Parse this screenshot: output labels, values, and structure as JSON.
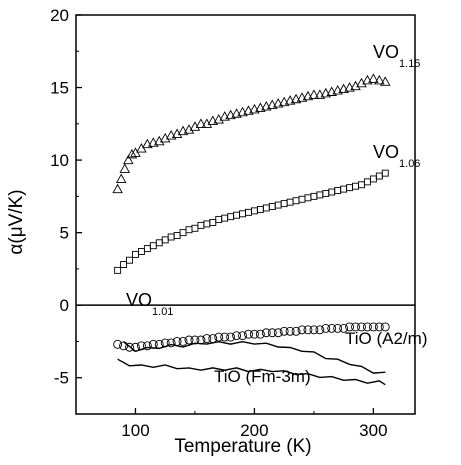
{
  "chart_data": {
    "type": "scatter",
    "xlabel": "Temperature (K)",
    "ylabel": "α(μV/K)",
    "xlim": [
      50,
      335
    ],
    "ylim": [
      -7.5,
      20
    ],
    "xticks": [
      100,
      200,
      300
    ],
    "yticks": [
      -5,
      0,
      5,
      10,
      15,
      20
    ],
    "zero_line": true,
    "grid": false,
    "series": [
      {
        "label_main": "VO",
        "label_sub": "1.15",
        "marker": "triangle",
        "x": [
          85,
          88,
          91,
          94,
          97,
          100,
          105,
          110,
          115,
          120,
          125,
          130,
          135,
          140,
          145,
          150,
          155,
          160,
          165,
          170,
          175,
          180,
          185,
          190,
          195,
          200,
          205,
          210,
          215,
          220,
          225,
          230,
          235,
          240,
          245,
          250,
          255,
          260,
          265,
          270,
          275,
          280,
          285,
          290,
          295,
          300,
          305,
          310
        ],
        "y": [
          8.0,
          8.7,
          9.4,
          10.0,
          10.4,
          10.5,
          10.8,
          11.1,
          11.2,
          11.3,
          11.5,
          11.7,
          11.8,
          12.0,
          12.1,
          12.3,
          12.5,
          12.5,
          12.7,
          12.8,
          13.0,
          13.1,
          13.2,
          13.3,
          13.4,
          13.5,
          13.6,
          13.7,
          13.8,
          13.9,
          14.0,
          14.1,
          14.2,
          14.3,
          14.4,
          14.5,
          14.5,
          14.6,
          14.7,
          14.8,
          14.9,
          15.0,
          15.1,
          15.3,
          15.5,
          15.6,
          15.5,
          15.4
        ]
      },
      {
        "label_main": "VO",
        "label_sub": "1.06",
        "marker": "square",
        "x": [
          85,
          90,
          95,
          100,
          105,
          110,
          115,
          120,
          125,
          130,
          135,
          140,
          145,
          150,
          155,
          160,
          165,
          170,
          175,
          180,
          185,
          190,
          195,
          200,
          205,
          210,
          215,
          220,
          225,
          230,
          235,
          240,
          245,
          250,
          255,
          260,
          265,
          270,
          275,
          280,
          285,
          290,
          295,
          300,
          305,
          310
        ],
        "y": [
          2.4,
          2.8,
          3.1,
          3.5,
          3.7,
          3.9,
          4.1,
          4.3,
          4.5,
          4.7,
          4.8,
          5.0,
          5.2,
          5.3,
          5.5,
          5.6,
          5.7,
          5.9,
          6.0,
          6.1,
          6.2,
          6.3,
          6.4,
          6.5,
          6.6,
          6.7,
          6.8,
          6.9,
          7.0,
          7.1,
          7.2,
          7.3,
          7.4,
          7.5,
          7.6,
          7.7,
          7.8,
          7.9,
          8.0,
          8.1,
          8.2,
          8.3,
          8.5,
          8.7,
          8.9,
          9.1
        ]
      },
      {
        "label_main": "VO",
        "label_sub": "1.01",
        "marker": "circle",
        "x": [
          85,
          90,
          95,
          100,
          105,
          110,
          115,
          120,
          125,
          130,
          135,
          140,
          145,
          150,
          155,
          160,
          165,
          170,
          175,
          180,
          185,
          190,
          195,
          200,
          205,
          210,
          215,
          220,
          225,
          230,
          235,
          240,
          245,
          250,
          255,
          260,
          265,
          270,
          275,
          280,
          285,
          290,
          295,
          300,
          305,
          310
        ],
        "y": [
          -2.7,
          -2.8,
          -2.9,
          -2.9,
          -2.8,
          -2.8,
          -2.7,
          -2.7,
          -2.6,
          -2.6,
          -2.5,
          -2.5,
          -2.4,
          -2.4,
          -2.4,
          -2.3,
          -2.3,
          -2.2,
          -2.2,
          -2.2,
          -2.1,
          -2.1,
          -2.0,
          -2.0,
          -2.0,
          -1.9,
          -1.9,
          -1.9,
          -1.8,
          -1.8,
          -1.8,
          -1.7,
          -1.7,
          -1.7,
          -1.7,
          -1.6,
          -1.6,
          -1.6,
          -1.6,
          -1.5,
          -1.5,
          -1.5,
          -1.5,
          -1.5,
          -1.5,
          -1.5
        ]
      },
      {
        "label": "TiO (A2/m)",
        "marker": "line",
        "x": [
          90,
          100,
          110,
          120,
          130,
          140,
          150,
          160,
          170,
          180,
          190,
          200,
          210,
          220,
          230,
          240,
          250,
          260,
          270,
          280,
          290,
          300,
          310
        ],
        "y": [
          -2.6,
          -3.1,
          -3.0,
          -2.9,
          -2.8,
          -2.8,
          -2.7,
          -2.6,
          -2.6,
          -2.6,
          -2.6,
          -2.6,
          -2.7,
          -2.8,
          -3.0,
          -3.1,
          -3.3,
          -3.6,
          -3.8,
          -4.0,
          -4.3,
          -4.6,
          -4.7
        ]
      },
      {
        "label": "TiO (Fm-3m)",
        "marker": "line",
        "x": [
          85,
          95,
          105,
          115,
          125,
          135,
          145,
          155,
          165,
          175,
          185,
          195,
          205,
          215,
          225,
          235,
          245,
          255,
          265,
          275,
          285,
          295,
          305,
          310
        ],
        "y": [
          -3.8,
          -4.1,
          -4.2,
          -4.2,
          -4.2,
          -4.3,
          -4.4,
          -4.4,
          -4.4,
          -4.4,
          -4.4,
          -4.5,
          -4.5,
          -4.5,
          -4.6,
          -4.7,
          -4.8,
          -4.9,
          -5.0,
          -5.1,
          -5.2,
          -5.3,
          -5.3,
          -5.4
        ]
      }
    ]
  }
}
